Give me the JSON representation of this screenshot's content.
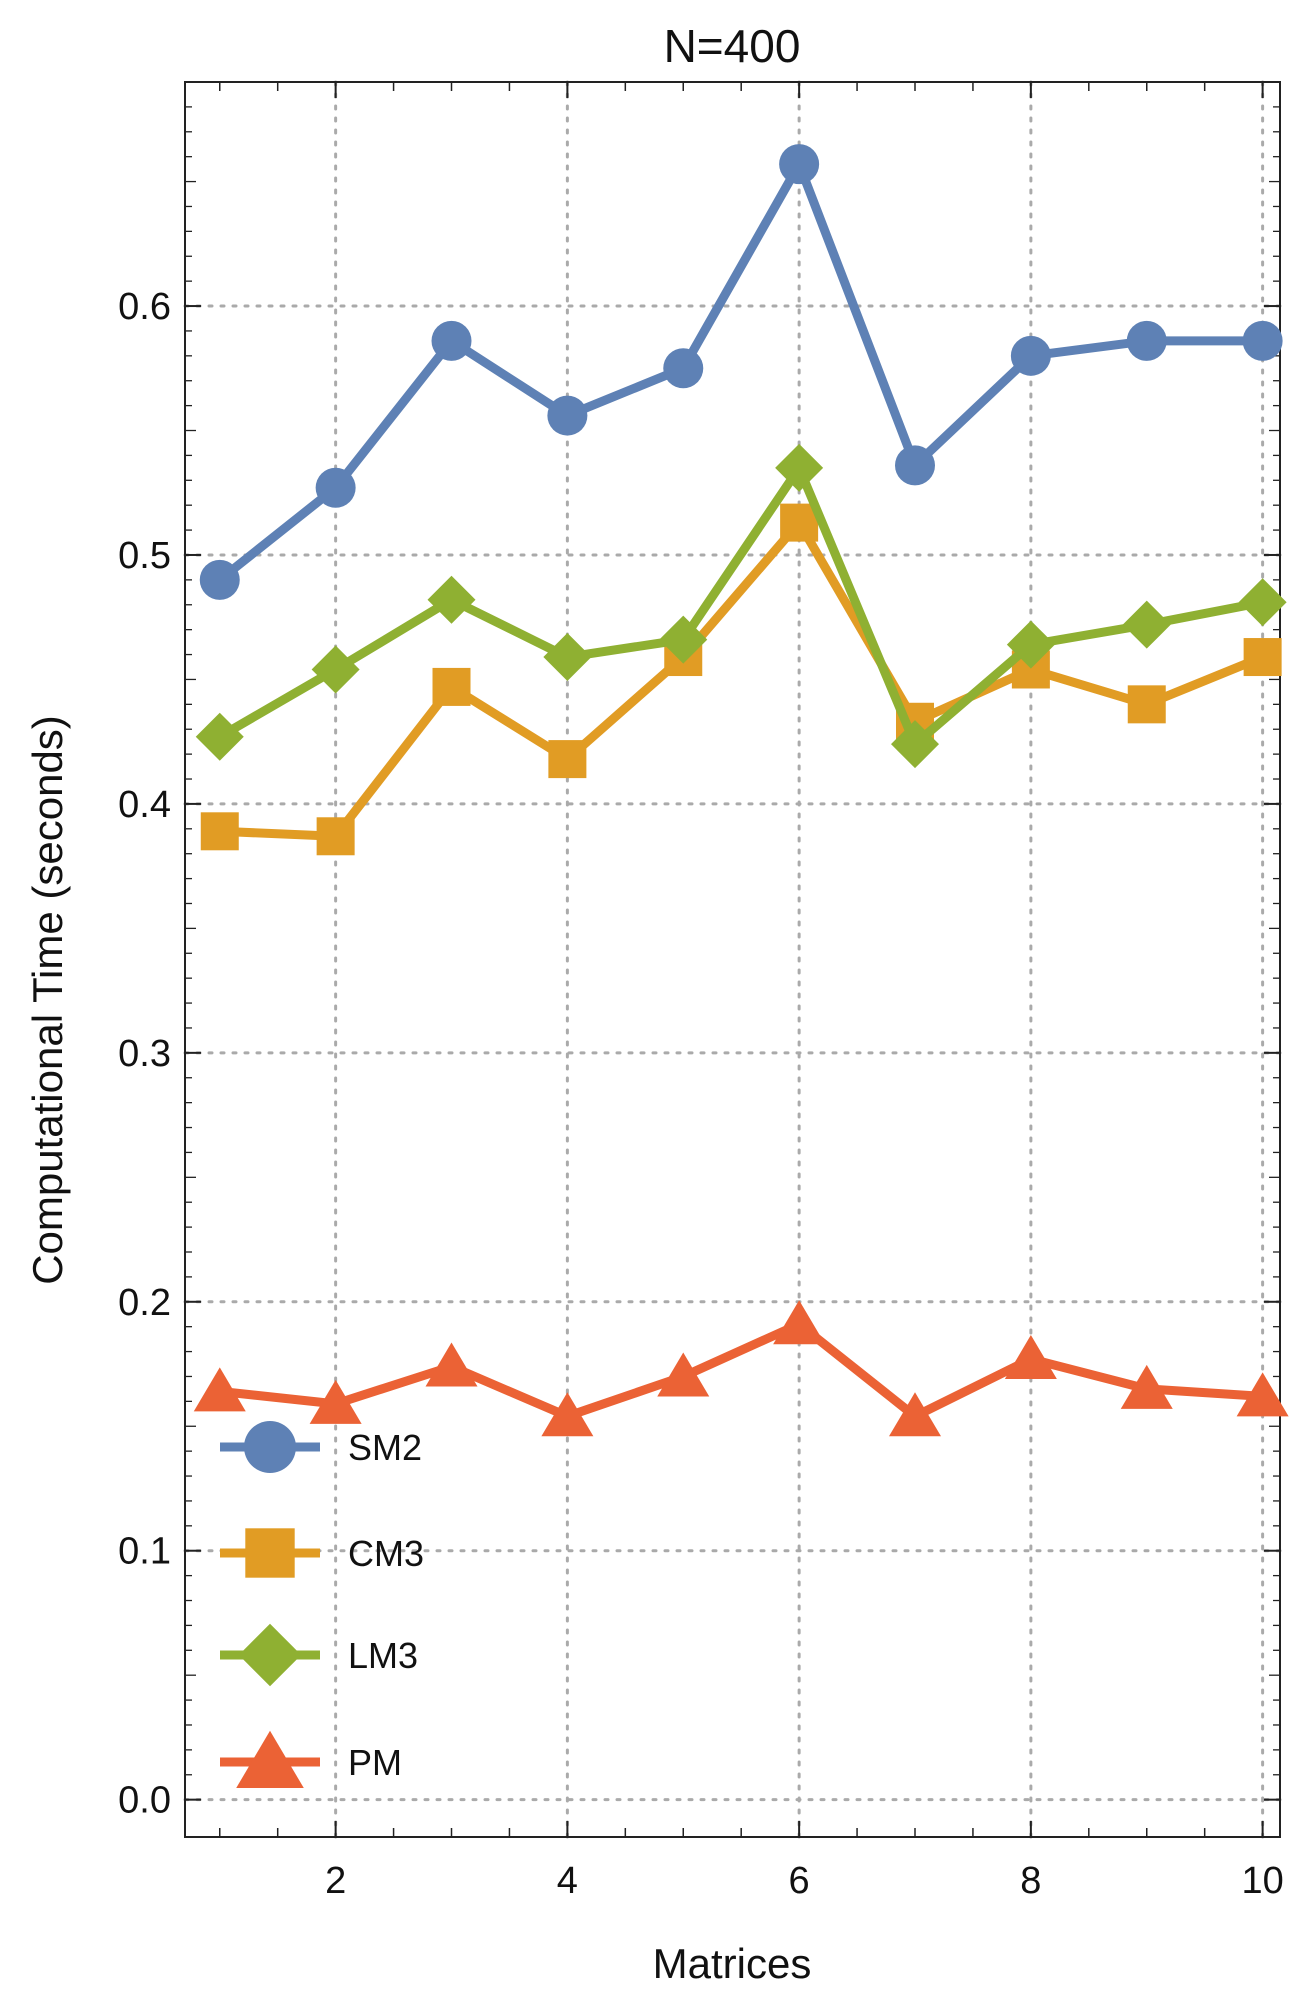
{
  "chart_data": {
    "type": "line",
    "title": "N=400",
    "xlabel": "Matrices",
    "ylabel": "Computational Time (seconds)",
    "xlim": [
      0.7,
      10.15
    ],
    "ylim": [
      -0.015,
      0.69
    ],
    "xticks": [
      2,
      4,
      6,
      8,
      10
    ],
    "xtick_labels": [
      "2",
      "4",
      "6",
      "8",
      "10"
    ],
    "yticks": [
      0.0,
      0.1,
      0.2,
      0.3,
      0.4,
      0.5,
      0.6
    ],
    "ytick_labels": [
      "0.0",
      "0.1",
      "0.2",
      "0.3",
      "0.4",
      "0.5",
      "0.6"
    ],
    "grid": true,
    "legend_position": "bottom-left",
    "x": [
      1,
      2,
      3,
      4,
      5,
      6,
      7,
      8,
      9,
      10
    ],
    "series": [
      {
        "name": "SM2",
        "marker": "circle",
        "color": "#5E81B5",
        "values": [
          0.49,
          0.527,
          0.586,
          0.556,
          0.575,
          0.657,
          0.536,
          0.58,
          0.586,
          0.586
        ]
      },
      {
        "name": "CM3",
        "marker": "square",
        "color": "#E19C24",
        "values": [
          0.389,
          0.387,
          0.447,
          0.418,
          0.459,
          0.513,
          0.433,
          0.454,
          0.44,
          0.459
        ]
      },
      {
        "name": "LM3",
        "marker": "diamond",
        "color": "#8FB032",
        "values": [
          0.427,
          0.454,
          0.482,
          0.459,
          0.466,
          0.535,
          0.424,
          0.464,
          0.472,
          0.481
        ]
      },
      {
        "name": "PM",
        "marker": "triangle",
        "color": "#EB6235",
        "values": [
          0.164,
          0.159,
          0.174,
          0.154,
          0.17,
          0.191,
          0.154,
          0.177,
          0.165,
          0.162
        ]
      }
    ]
  }
}
